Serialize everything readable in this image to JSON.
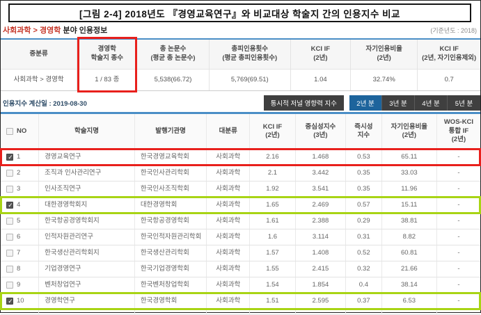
{
  "title": "[그림 2-4] 2018년도 『경영교육연구』와 비교대상 학술지 간의 인용지수 비교",
  "breadcrumb": {
    "category": "사회과학 > 경영학",
    "suffix": " 분야 인용정보",
    "base_year": "(기준년도 : 2018)"
  },
  "summary": {
    "headers": [
      "중분류",
      "경영학\n학술지 종수",
      "총 논문수\n(평균 총 논문수)",
      "총피인용횟수\n(평균 총피인용횟수)",
      "KCI IF\n(2년)",
      "자기인용비율\n(2년)",
      "KCI IF\n(2년, 자기인용제외)"
    ],
    "row": [
      "사회과학 > 경영학",
      "1 / 83 종",
      "5,538(66.72)",
      "5,769(69.51)",
      "1.04",
      "32.74%",
      "0.7"
    ]
  },
  "toolbar": {
    "calc_date": "인용지수 계산일 : 2019-08-30",
    "diachronic_button": "통시적 저널 영향력 지수",
    "year_buttons": [
      {
        "label": "2년 분",
        "active": true
      },
      {
        "label": "3년 분",
        "active": false
      },
      {
        "label": "4년 분",
        "active": false
      },
      {
        "label": "5년 분",
        "active": false
      }
    ]
  },
  "table": {
    "headers": [
      "NO",
      "학술지명",
      "발행기관명",
      "대분류",
      "KCI IF\n(2년)",
      "중심성지수\n(3년)",
      "즉시성\n지수",
      "자기인용비율\n(2년)",
      "WOS-KCI\n통합 IF\n(2년)"
    ],
    "rows": [
      {
        "no": "1",
        "checked": true,
        "highlight": "red",
        "name": "경영교육연구",
        "publisher": "한국경영교육학회",
        "category": "사회과학",
        "kci_if": "2.16",
        "centrality": "1.468",
        "immediacy": "0.53",
        "self_cite": "65.11",
        "wos_kci": "-"
      },
      {
        "no": "2",
        "checked": false,
        "highlight": null,
        "name": "조직과 인사관리연구",
        "publisher": "한국인사관리학회",
        "category": "사회과학",
        "kci_if": "2.1",
        "centrality": "3.442",
        "immediacy": "0.35",
        "self_cite": "33.03",
        "wos_kci": "-"
      },
      {
        "no": "3",
        "checked": false,
        "highlight": null,
        "name": "인사조직연구",
        "publisher": "한국인사조직학회",
        "category": "사회과학",
        "kci_if": "1.92",
        "centrality": "3.541",
        "immediacy": "0.35",
        "self_cite": "11.96",
        "wos_kci": "-"
      },
      {
        "no": "4",
        "checked": true,
        "highlight": "green",
        "name": "대한경영학회지",
        "publisher": "대한경영학회",
        "category": "사회과학",
        "kci_if": "1.65",
        "centrality": "2.469",
        "immediacy": "0.57",
        "self_cite": "15.11",
        "wos_kci": "-"
      },
      {
        "no": "5",
        "checked": false,
        "highlight": null,
        "name": "한국항공경영학회지",
        "publisher": "한국항공경영학회",
        "category": "사회과학",
        "kci_if": "1.61",
        "centrality": "2.388",
        "immediacy": "0.29",
        "self_cite": "38.81",
        "wos_kci": "-"
      },
      {
        "no": "6",
        "checked": false,
        "highlight": null,
        "name": "인적자원관리연구",
        "publisher": "한국인적자원관리학회",
        "category": "사회과학",
        "kci_if": "1.6",
        "centrality": "3.114",
        "immediacy": "0.31",
        "self_cite": "8.82",
        "wos_kci": "-"
      },
      {
        "no": "7",
        "checked": false,
        "highlight": null,
        "name": "한국생산관리학회지",
        "publisher": "한국생산관리학회",
        "category": "사회과학",
        "kci_if": "1.57",
        "centrality": "1.408",
        "immediacy": "0.52",
        "self_cite": "60.81",
        "wos_kci": "-"
      },
      {
        "no": "8",
        "checked": false,
        "highlight": null,
        "name": "기업경영연구",
        "publisher": "한국기업경영학회",
        "category": "사회과학",
        "kci_if": "1.55",
        "centrality": "2.415",
        "immediacy": "0.32",
        "self_cite": "21.66",
        "wos_kci": "-"
      },
      {
        "no": "9",
        "checked": false,
        "highlight": null,
        "name": "벤처창업연구",
        "publisher": "한국벤처창업학회",
        "category": "사회과학",
        "kci_if": "1.54",
        "centrality": "1.854",
        "immediacy": "0.4",
        "self_cite": "38.14",
        "wos_kci": "-"
      },
      {
        "no": "10",
        "checked": true,
        "highlight": "green",
        "name": "경영학연구",
        "publisher": "한국경영학회",
        "category": "사회과학",
        "kci_if": "1.51",
        "centrality": "2.595",
        "immediacy": "0.37",
        "self_cite": "6.53",
        "wos_kci": "-"
      }
    ]
  },
  "colors": {
    "annotation_red": "#e8201c",
    "annotation_green": "#a8d414",
    "accent_blue_line": "#4a8ec6",
    "active_button_blue": "#1d649c",
    "button_dark": "#3f3f3f",
    "breadcrumb_red": "#c53527",
    "journal_link_blue": "#4f84b8"
  }
}
